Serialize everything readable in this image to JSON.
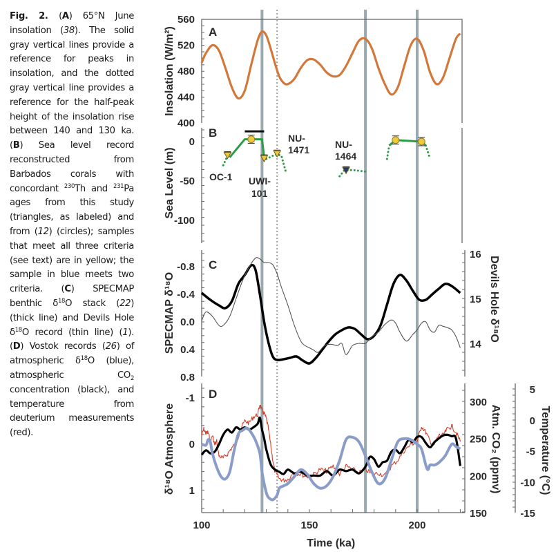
{
  "caption": {
    "fig_label": "Fig. 2.",
    "parts": [
      {
        "t": "b",
        "v": "Fig. 2. "
      },
      {
        "t": "n",
        "v": "("
      },
      {
        "t": "b",
        "v": "A"
      },
      {
        "t": "n",
        "v": ") 65°N June insolation ("
      },
      {
        "t": "i",
        "v": "38"
      },
      {
        "t": "n",
        "v": "). The solid gray vertical lines provide a reference for peaks in insolation, and the dotted gray vertical line provides a reference for the half-peak height of the insolation rise between 140 and 130 ka. ("
      },
      {
        "t": "b",
        "v": "B"
      },
      {
        "t": "n",
        "v": ") Sea level record reconstructed from Barbados corals with concordant "
      },
      {
        "t": "sup",
        "v": "230"
      },
      {
        "t": "n",
        "v": "Th and "
      },
      {
        "t": "sup",
        "v": "231"
      },
      {
        "t": "n",
        "v": "Pa ages from this study (triangles, as labeled) and from ("
      },
      {
        "t": "i",
        "v": "12"
      },
      {
        "t": "n",
        "v": ") (circles); samples that meet all three criteria (see text) are in yellow; the sample in blue meets two criteria. ("
      },
      {
        "t": "b",
        "v": "C"
      },
      {
        "t": "n",
        "v": ") SPECMAP benthic δ"
      },
      {
        "t": "sup",
        "v": "18"
      },
      {
        "t": "n",
        "v": "O stack ("
      },
      {
        "t": "i",
        "v": "22"
      },
      {
        "t": "n",
        "v": ") (thick line) and Devils Hole δ"
      },
      {
        "t": "sup",
        "v": "18"
      },
      {
        "t": "n",
        "v": "O record (thin line) ("
      },
      {
        "t": "i",
        "v": "1"
      },
      {
        "t": "n",
        "v": "). ("
      },
      {
        "t": "b",
        "v": "D"
      },
      {
        "t": "n",
        "v": ") Vostok records ("
      },
      {
        "t": "i",
        "v": "26"
      },
      {
        "t": "n",
        "v": ") of atmospheric δ"
      },
      {
        "t": "sup",
        "v": "18"
      },
      {
        "t": "n",
        "v": "O (blue), atmospheric CO"
      },
      {
        "t": "sub",
        "v": "2"
      },
      {
        "t": "n",
        "v": " concentration (black), and temperature from deuterium measurements (red)."
      }
    ]
  },
  "chart_data": [
    {
      "panel": "A",
      "type": "line",
      "ylabel": "Insolation (W/m²)",
      "yticks": [
        560,
        520,
        480,
        440,
        400
      ],
      "ylim": [
        400,
        560
      ],
      "xlim": [
        100,
        220
      ],
      "series": [
        {
          "name": "65°N June insolation",
          "color": "#d2783a",
          "x": [
            100,
            102,
            105,
            108,
            111,
            114,
            117,
            120,
            123,
            126,
            128,
            130,
            132,
            134,
            136,
            138,
            140,
            143,
            146,
            149,
            152,
            155,
            158,
            161,
            164,
            167,
            170,
            173,
            176,
            179,
            182,
            185,
            188,
            191,
            194,
            197,
            200,
            203,
            206,
            209,
            212,
            215,
            218,
            220
          ],
          "y": [
            493,
            508,
            520,
            512,
            485,
            455,
            438,
            450,
            490,
            528,
            541,
            535,
            515,
            492,
            472,
            462,
            460,
            468,
            485,
            497,
            498,
            490,
            478,
            472,
            474,
            488,
            508,
            527,
            530,
            515,
            485,
            460,
            444,
            455,
            488,
            520,
            530,
            512,
            478,
            460,
            470,
            500,
            530,
            538
          ]
        }
      ]
    },
    {
      "panel": "B",
      "type": "scatter",
      "ylabel": "Sea Level (m)",
      "yticks": [
        0,
        -50,
        -100
      ],
      "ylim": [
        -125,
        20
      ],
      "xlim": [
        100,
        220
      ],
      "samples": [
        {
          "label": "OC-1",
          "x": 112,
          "y": -18,
          "marker": "triangle",
          "color": "#f0c93a"
        },
        {
          "label": "",
          "x": 123,
          "y": 3,
          "marker": "circle",
          "color": "#f0c93a"
        },
        {
          "label": "UWI-101",
          "x": 129,
          "y": -22,
          "marker": "triangle",
          "color": "#f0c93a"
        },
        {
          "label": "NU-1471",
          "x": 135,
          "y": -16,
          "marker": "triangle",
          "color": "#f0c93a"
        },
        {
          "label": "NU-1464",
          "x": 167,
          "y": -37,
          "marker": "triangle",
          "color": "#1e3a7a"
        },
        {
          "label": "",
          "x": 190,
          "y": 2,
          "marker": "circle",
          "color": "#f0c93a"
        },
        {
          "label": "",
          "x": 202,
          "y": 0,
          "marker": "circle",
          "color": "#f0c93a"
        }
      ],
      "bar": {
        "x_start": 120,
        "x_end": 129,
        "y": 13
      },
      "solid_paths": [
        [
          [
            113,
            -20
          ],
          [
            120,
            3
          ],
          [
            123,
            3
          ],
          [
            128,
            3
          ],
          [
            129,
            -20
          ]
        ],
        [
          [
            187,
            -5
          ],
          [
            190,
            2
          ],
          [
            202,
            0
          ],
          [
            204,
            -5
          ]
        ]
      ],
      "dotted_paths": [
        [
          [
            110,
            -30
          ],
          [
            112,
            -18
          ]
        ],
        [
          [
            130,
            -22
          ],
          [
            133,
            -18
          ],
          [
            135,
            -16
          ],
          [
            137,
            -18
          ],
          [
            139,
            -38
          ]
        ],
        [
          [
            164,
            -44
          ],
          [
            166,
            -37
          ],
          [
            170,
            -36
          ],
          [
            176,
            -38
          ]
        ],
        [
          [
            186,
            -22
          ],
          [
            187,
            -5
          ]
        ],
        [
          [
            204,
            -5
          ],
          [
            206,
            -22
          ]
        ]
      ]
    },
    {
      "panel": "C",
      "type": "line",
      "ylabel": "SPECMAP δ18O",
      "ylabel2": "Devils Hole δ18O",
      "yticks": [
        "-0.8",
        "-0.4",
        "0.0",
        "0.4",
        "0.8"
      ],
      "ylim": [
        0.8,
        -1.0
      ],
      "yticks2": [
        16,
        15,
        14
      ],
      "ylim2": [
        13.2,
        16.0
      ],
      "xlim": [
        100,
        220
      ],
      "series": [
        {
          "name": "SPECMAP benthic δ18O stack (thick line)",
          "color": "#000000",
          "axis": "left",
          "x": [
            100,
            104,
            108,
            111,
            114,
            117,
            120,
            123,
            125,
            127,
            129,
            131,
            133,
            135,
            138,
            141,
            144,
            147,
            150,
            153,
            156,
            159,
            162,
            165,
            168,
            171,
            174,
            177,
            180,
            183,
            186,
            189,
            192,
            195,
            198,
            201,
            204,
            207,
            210,
            213,
            216,
            220
          ],
          "y": [
            -0.42,
            -0.32,
            -0.24,
            -0.2,
            -0.3,
            -0.55,
            -0.68,
            -0.82,
            -0.75,
            -0.4,
            0.0,
            0.3,
            0.5,
            0.55,
            0.54,
            0.52,
            0.5,
            0.56,
            0.6,
            0.52,
            0.4,
            0.28,
            0.18,
            0.12,
            0.08,
            0.1,
            0.18,
            0.25,
            0.2,
            0.05,
            -0.25,
            -0.55,
            -0.68,
            -0.6,
            -0.45,
            -0.32,
            -0.32,
            -0.4,
            -0.48,
            -0.55,
            -0.52,
            -0.42
          ]
        },
        {
          "name": "Devils Hole δ18O (thin line)",
          "color": "#555555",
          "axis": "right",
          "x": [
            100,
            102,
            105,
            108,
            110,
            113,
            116,
            119,
            122,
            125,
            127,
            129,
            131,
            133,
            135,
            137,
            140,
            143,
            146,
            148,
            150,
            152,
            154,
            157,
            160,
            163,
            165,
            167,
            170,
            173,
            176,
            179,
            182,
            185,
            188,
            190,
            192,
            195,
            198,
            200,
            202,
            204,
            206,
            208,
            210,
            212,
            214,
            216,
            218,
            220
          ],
          "y": [
            14.5,
            14.7,
            14.6,
            14.4,
            14.4,
            14.6,
            15.0,
            15.4,
            15.7,
            15.9,
            15.88,
            15.8,
            15.8,
            15.75,
            15.55,
            15.25,
            14.85,
            14.4,
            14.05,
            13.95,
            13.9,
            13.85,
            13.8,
            13.95,
            13.98,
            13.95,
            14.0,
            13.75,
            13.95,
            14.0,
            14.0,
            14.15,
            14.25,
            14.42,
            14.52,
            14.45,
            14.25,
            14.05,
            14.2,
            14.3,
            14.45,
            14.48,
            14.3,
            14.25,
            14.4,
            14.38,
            14.35,
            14.3,
            14.15,
            13.9
          ]
        }
      ]
    },
    {
      "panel": "D",
      "type": "line",
      "ylabel": "δ18O Atmosphere",
      "ylabel2": "Atm. CO₂ (ppmv)",
      "ylabel3": "Temperature (°C)",
      "yticks": [
        "-1",
        "0",
        "1"
      ],
      "ylim": [
        1.5,
        -1.3
      ],
      "yticks2": [
        300,
        250,
        200,
        150
      ],
      "ylim2": [
        150,
        315
      ],
      "yticks3": [
        5,
        0,
        -5,
        -10,
        -15
      ],
      "ylim3": [
        -15,
        5
      ],
      "xlabel": "Time (ka)",
      "xticks": [
        100,
        150,
        200
      ],
      "xlim": [
        100,
        220
      ],
      "series": [
        {
          "name": "Atmospheric δ18O (blue)",
          "color": "#8a9cc8",
          "axis": "left",
          "x": [
            100,
            102,
            103,
            104,
            105,
            107,
            109,
            111,
            113,
            115,
            117,
            119,
            121,
            123,
            125,
            127,
            128,
            129,
            130,
            131,
            133,
            135,
            136,
            138,
            140,
            143,
            146,
            149,
            152,
            155,
            158,
            161,
            164,
            167,
            170,
            173,
            176,
            179,
            182,
            185,
            188,
            191,
            194,
            197,
            200,
            202,
            204,
            205,
            206,
            208,
            210,
            213,
            216,
            218,
            220
          ],
          "y": [
            0.0,
            0.02,
            -0.1,
            -0.05,
            0.2,
            0.5,
            0.7,
            0.75,
            0.6,
            0.15,
            -0.22,
            -0.3,
            -0.35,
            -0.25,
            -0.08,
            0.2,
            0.6,
            0.85,
            1.05,
            1.15,
            1.2,
            1.1,
            0.95,
            0.9,
            0.85,
            0.7,
            0.55,
            0.65,
            0.85,
            0.95,
            0.9,
            0.7,
            0.35,
            -0.1,
            -0.15,
            -0.05,
            0.25,
            0.6,
            0.85,
            0.75,
            0.35,
            -0.05,
            -0.12,
            -0.1,
            0.0,
            0.1,
            0.45,
            0.55,
            0.45,
            0.45,
            0.4,
            0.25,
            0.0,
            0.05,
            0.1
          ]
        },
        {
          "name": "Atmospheric CO₂ (black)",
          "color": "#000000",
          "axis": "right",
          "x": [
            100,
            102,
            104,
            106,
            108,
            110,
            112,
            114,
            116,
            118,
            120,
            122,
            124,
            126,
            127,
            128,
            129,
            130,
            132,
            134,
            136,
            138,
            140,
            143,
            146,
            149,
            152,
            155,
            158,
            161,
            164,
            167,
            170,
            173,
            176,
            178,
            180,
            182,
            184,
            186,
            188,
            190,
            192,
            194,
            196,
            198,
            200,
            202,
            204,
            206,
            208,
            210,
            212,
            214,
            216,
            218,
            220
          ],
          "y": [
            228,
            234,
            230,
            232,
            242,
            255,
            262,
            258,
            265,
            262,
            265,
            262,
            265,
            270,
            278,
            262,
            250,
            235,
            215,
            208,
            205,
            202,
            208,
            203,
            205,
            200,
            200,
            200,
            206,
            200,
            208,
            206,
            208,
            203,
            212,
            225,
            222,
            212,
            218,
            220,
            232,
            235,
            230,
            238,
            248,
            245,
            252,
            252,
            244,
            238,
            245,
            250,
            254,
            255,
            253,
            250,
            213
          ]
        },
        {
          "name": "Temperature from deuterium (red)",
          "color": "#d0402a",
          "axis": "right3",
          "x": [
            100,
            101,
            102,
            103,
            104,
            105,
            106,
            107,
            108,
            110,
            112,
            114,
            116,
            118,
            120,
            122,
            124,
            126,
            127,
            128,
            129,
            130,
            131,
            132,
            133,
            134,
            136,
            138,
            140,
            143,
            146,
            149,
            152,
            155,
            158,
            161,
            164,
            167,
            170,
            173,
            176,
            179,
            182,
            185,
            188,
            191,
            194,
            197,
            200,
            202,
            204,
            206,
            208,
            210,
            212,
            214,
            216,
            218,
            220
          ],
          "y": [
            -2.5,
            -1.5,
            -2.2,
            -2.0,
            -3.5,
            -2.5,
            -4,
            -3.5,
            -5.8,
            -6.2,
            -5.5,
            -4.5,
            -3.8,
            -1.5,
            -0.2,
            -0.5,
            0.5,
            0.8,
            2.5,
            1.5,
            1.0,
            0.2,
            -1.5,
            -4,
            -6.5,
            -8.5,
            -9.5,
            -9.8,
            -9.6,
            -8.5,
            -8.8,
            -9.2,
            -8.8,
            -8.0,
            -8.3,
            -7.5,
            -8.8,
            -7.5,
            -8.0,
            -8.5,
            -8.0,
            -8.8,
            -8.6,
            -9.0,
            -7.5,
            -6.5,
            -5.0,
            -4.0,
            -3.5,
            -1.0,
            -2.0,
            -3.5,
            -4.0,
            -2.5,
            -2.5,
            -1.5,
            -1.0,
            -2.0,
            -3.5
          ]
        }
      ]
    }
  ],
  "reference_lines": {
    "solid_ka": [
      128,
      176,
      200
    ],
    "dotted_ka": [
      135
    ],
    "solid_color": "#9aa8b0",
    "dotted_color": "#a0a0a0"
  },
  "panel_letters": [
    "A",
    "B",
    "C",
    "D"
  ],
  "panel_b_labels": {
    "oc1": "OC-1",
    "uwi_1": "UWI-",
    "uwi_2": "101",
    "nu1471_1": "NU-",
    "nu1471_2": "1471",
    "nu1464_1": "NU-",
    "nu1464_2": "1464"
  },
  "axis_titles": {
    "a_left": "Insolation (W/m²)",
    "b_left": "Sea Level (m)",
    "c_left": "SPECMAP δ¹⁸O",
    "c_right": "Devils Hole δ¹⁸O",
    "d_left": "δ¹⁸O Atmosphere",
    "d_right1": "Atm. CO₂ (ppmv)",
    "d_right2": "Temperature (°C)",
    "x": "Time (ka)"
  }
}
